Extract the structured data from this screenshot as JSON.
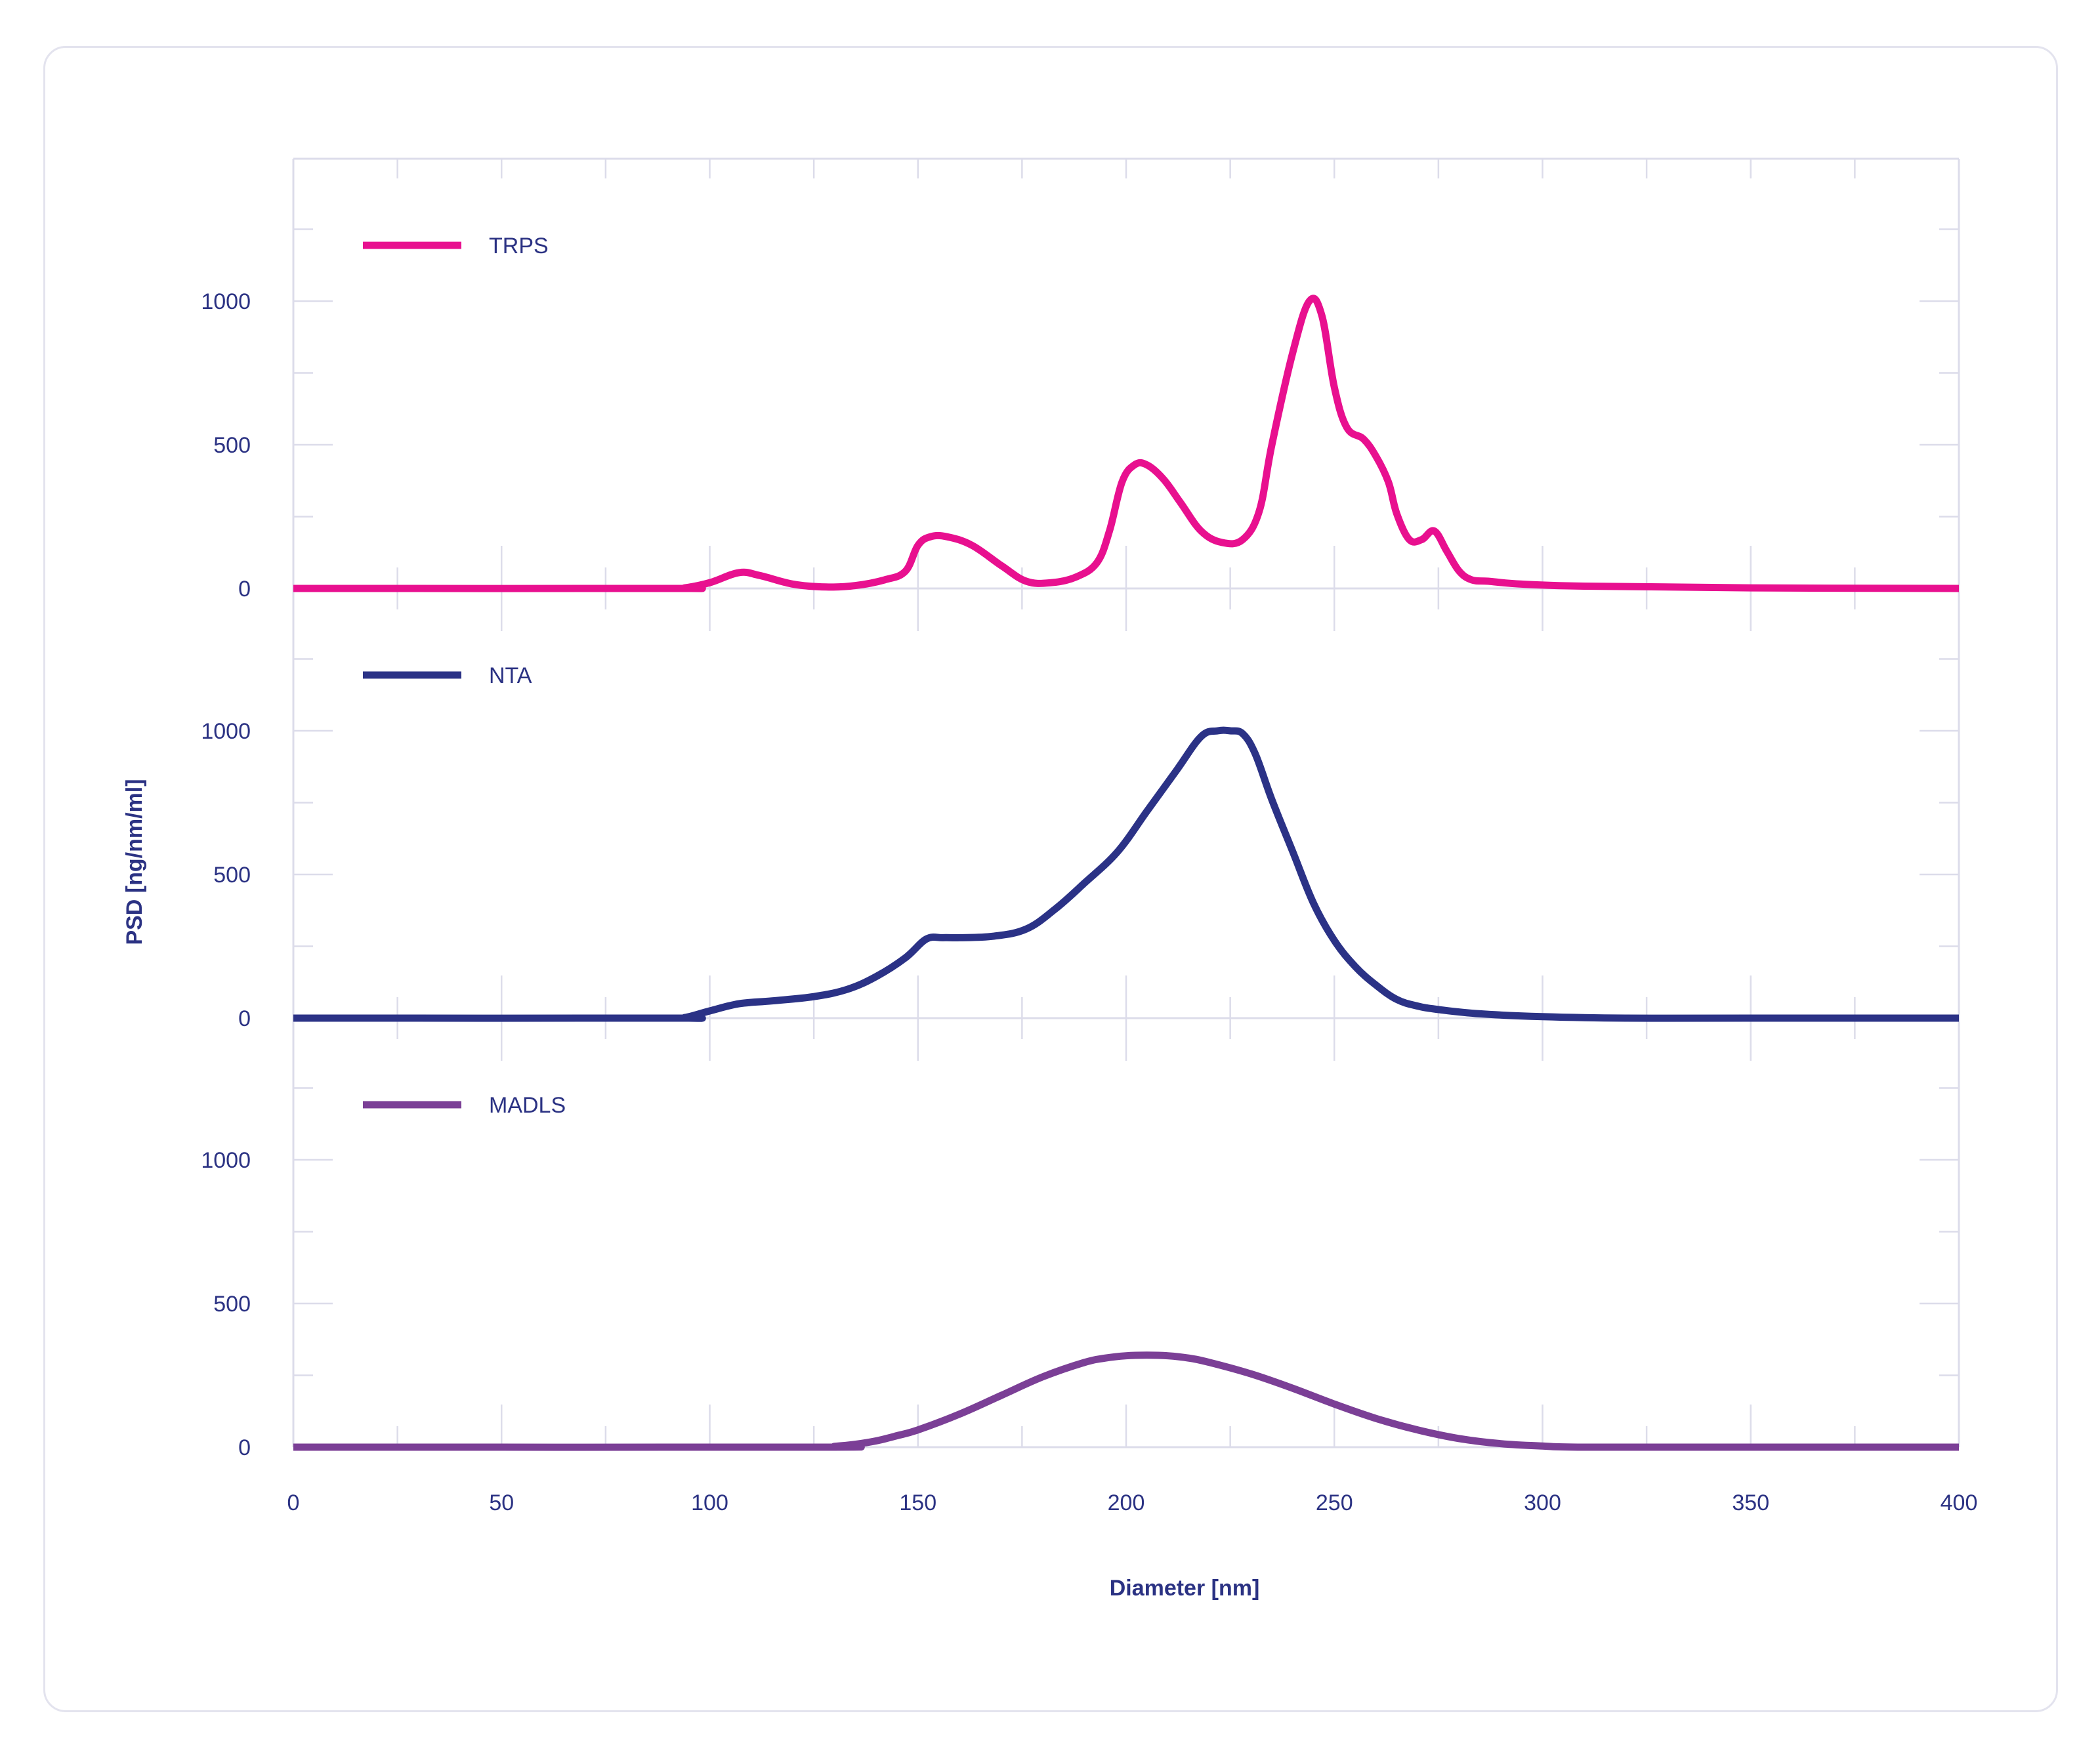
{
  "chart_data": {
    "type": "line",
    "xlabel": "Diameter [nm]",
    "ylabel": "PSD [ng/nm/ml]",
    "xlim": [
      0,
      400
    ],
    "x_ticks": [
      "0",
      "50",
      "100",
      "150",
      "200",
      "250",
      "300",
      "350",
      "400"
    ],
    "x_tick_values": [
      0,
      50,
      100,
      150,
      200,
      250,
      300,
      350,
      400
    ],
    "y_ticks": [
      "0",
      "500",
      "1000"
    ],
    "y_tick_values": [
      0,
      500,
      1000
    ],
    "ylim_per_panel": [
      0,
      1500
    ],
    "grid": true,
    "legend_position": "top-left of each panel",
    "series": [
      {
        "name": "TRPS",
        "color": "#e8108f",
        "x": [
          0,
          90,
          94,
          100,
          107,
          112,
          120,
          128,
          135,
          142,
          147,
          150,
          153,
          157,
          163,
          170,
          176,
          182,
          188,
          193,
          196,
          199,
          202,
          205,
          209,
          213,
          218,
          223,
          228,
          232,
          235,
          240,
          244,
          247,
          250,
          253,
          257,
          260,
          263,
          265,
          268,
          271,
          274,
          277,
          280,
          283,
          287,
          295,
          310,
          350,
          400
        ],
        "values": [
          0,
          0,
          2,
          20,
          55,
          45,
          15,
          5,
          10,
          30,
          60,
          150,
          180,
          180,
          150,
          80,
          25,
          20,
          40,
          90,
          200,
          370,
          430,
          430,
          380,
          300,
          200,
          160,
          170,
          270,
          500,
          820,
          1000,
          950,
          700,
          560,
          520,
          460,
          370,
          260,
          170,
          170,
          200,
          130,
          60,
          30,
          25,
          15,
          8,
          2,
          0
        ]
      },
      {
        "name": "NTA",
        "color": "#2b3286",
        "x": [
          0,
          90,
          94,
          100,
          107,
          115,
          125,
          133,
          140,
          147,
          152,
          156,
          160,
          168,
          176,
          183,
          190,
          198,
          205,
          212,
          218,
          222,
          225,
          228,
          231,
          235,
          240,
          245,
          250,
          255,
          260,
          265,
          270,
          275,
          285,
          300,
          320,
          350,
          400
        ],
        "values": [
          0,
          0,
          2,
          25,
          50,
          60,
          75,
          100,
          145,
          210,
          275,
          280,
          280,
          285,
          310,
          380,
          470,
          580,
          720,
          860,
          980,
          1000,
          1000,
          990,
          920,
          760,
          580,
          400,
          270,
          180,
          115,
          65,
          42,
          30,
          15,
          5,
          0,
          0,
          0
        ]
      },
      {
        "name": "MADLS",
        "color": "#7b3f96",
        "x": [
          0,
          125,
          130,
          135,
          140,
          145,
          150,
          160,
          170,
          180,
          190,
          195,
          200,
          205,
          210,
          215,
          220,
          230,
          240,
          250,
          260,
          270,
          280,
          290,
          300,
          310,
          350,
          400
        ],
        "values": [
          0,
          0,
          3,
          10,
          22,
          40,
          60,
          115,
          180,
          245,
          295,
          310,
          318,
          320,
          318,
          310,
          295,
          255,
          205,
          150,
          100,
          60,
          30,
          12,
          4,
          0,
          0,
          0
        ]
      }
    ]
  }
}
